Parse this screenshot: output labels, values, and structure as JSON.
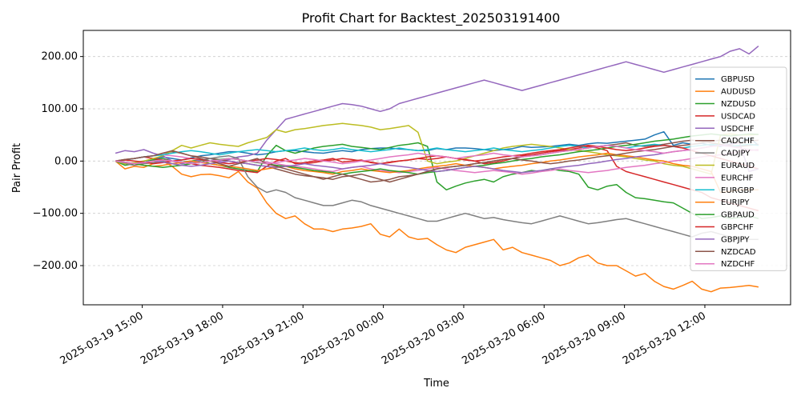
{
  "chart_data": {
    "type": "line",
    "title": "Profit Chart for Backtest_202503191400",
    "xlabel": "Time",
    "ylabel": "Pair Profit",
    "x_start": "2025-03-19 14:00",
    "x_end": "2025-03-20 14:00",
    "xlim": [
      "2025-03-19 12:48",
      "2025-03-20 15:12"
    ],
    "ylim": [
      -275,
      250
    ],
    "x_ticks": [
      "2025-03-19 15:00",
      "2025-03-19 18:00",
      "2025-03-19 21:00",
      "2025-03-20 00:00",
      "2025-03-20 03:00",
      "2025-03-20 06:00",
      "2025-03-20 09:00",
      "2025-03-20 12:00"
    ],
    "x_tick_labels": [
      "2025-03-19 15:00",
      "2025-03-19 18:00",
      "2025-03-19 21:00",
      "2025-03-20 00:00",
      "2025-03-20 03:00",
      "2025-03-20 06:00",
      "2025-03-20 09:00",
      "2025-03-20 12:00"
    ],
    "y_ticks": [
      -200,
      -100,
      0,
      100,
      200
    ],
    "y_tick_labels": [
      "−200.00",
      "−100.00",
      "0.00",
      "100.00",
      "200.00"
    ],
    "grid": "dashed",
    "legend_position": "right",
    "series": [
      {
        "name": "GBPUSD",
        "color": "#1f77b4",
        "values": [
          0,
          -2,
          -5,
          0,
          3,
          8,
          5,
          2,
          6,
          10,
          12,
          15,
          18,
          18,
          15,
          12,
          14,
          18,
          20,
          20,
          18,
          16,
          15,
          18,
          20,
          18,
          22,
          24,
          25,
          25,
          23,
          22,
          20,
          20,
          24,
          22,
          25,
          25,
          24,
          22,
          20,
          22,
          24,
          28,
          26,
          27,
          28,
          30,
          32,
          30,
          33,
          35,
          34,
          36,
          38,
          40,
          42,
          50,
          56,
          30,
          35,
          32,
          34,
          30,
          28,
          33,
          35,
          45,
          30
        ]
      },
      {
        "name": "AUDUSD",
        "color": "#ff7f0e",
        "values": [
          0,
          -15,
          -10,
          -12,
          -5,
          0,
          -10,
          -25,
          -30,
          -26,
          -25,
          -28,
          -32,
          -20,
          -40,
          -52,
          -80,
          -100,
          -110,
          -105,
          -120,
          -130,
          -130,
          -135,
          -130,
          -128,
          -125,
          -120,
          -140,
          -145,
          -130,
          -145,
          -150,
          -148,
          -160,
          -170,
          -175,
          -165,
          -160,
          -155,
          -150,
          -170,
          -165,
          -175,
          -180,
          -185,
          -190,
          -200,
          -195,
          -185,
          -180,
          -195,
          -200,
          -200,
          -210,
          -220,
          -215,
          -230,
          -240,
          -245,
          -238,
          -230,
          -245,
          -250,
          -243,
          -242,
          -240,
          -238,
          -241
        ]
      },
      {
        "name": "NZDUSD",
        "color": "#2ca02c",
        "values": [
          0,
          -8,
          -5,
          -3,
          2,
          5,
          0,
          -2,
          0,
          2,
          -5,
          -8,
          -12,
          -15,
          -18,
          -20,
          10,
          30,
          20,
          15,
          20,
          25,
          28,
          30,
          32,
          28,
          26,
          24,
          22,
          26,
          30,
          32,
          35,
          28,
          -40,
          -55,
          -48,
          -42,
          -38,
          -35,
          -40,
          -30,
          -25,
          -22,
          -18,
          -20,
          -15,
          -18,
          -20,
          -25,
          -50,
          -55,
          -48,
          -45,
          -60,
          -70,
          -72,
          -75,
          -78,
          -80,
          -90,
          -100,
          -110,
          -108,
          -105,
          -110,
          -108,
          -105,
          -110
        ]
      },
      {
        "name": "USDCAD",
        "color": "#d62728",
        "values": [
          0,
          2,
          5,
          8,
          5,
          2,
          0,
          -3,
          -5,
          -8,
          -10,
          -12,
          -15,
          -18,
          -20,
          -22,
          -10,
          0,
          5,
          -5,
          -3,
          0,
          2,
          5,
          -2,
          0,
          2,
          -3,
          -5,
          -2,
          0,
          2,
          5,
          3,
          5,
          8,
          5,
          2,
          0,
          -5,
          -3,
          0,
          5,
          10,
          12,
          15,
          18,
          20,
          22,
          25,
          28,
          25,
          20,
          -10,
          -20,
          -25,
          -30,
          -35,
          -40,
          -45,
          -50,
          -55,
          -60,
          -70,
          -75,
          -80,
          -85,
          -90,
          -95
        ]
      },
      {
        "name": "USDCHF",
        "color": "#9467bd",
        "values": [
          15,
          20,
          18,
          22,
          15,
          10,
          0,
          -5,
          -2,
          2,
          5,
          0,
          3,
          8,
          10,
          15,
          40,
          60,
          80,
          85,
          90,
          95,
          100,
          105,
          110,
          108,
          105,
          100,
          95,
          100,
          110,
          115,
          120,
          125,
          130,
          135,
          140,
          145,
          150,
          155,
          150,
          145,
          140,
          135,
          140,
          145,
          150,
          155,
          160,
          165,
          170,
          175,
          180,
          185,
          190,
          185,
          180,
          175,
          170,
          175,
          180,
          185,
          190,
          195,
          200,
          210,
          215,
          205,
          220
        ]
      },
      {
        "name": "CADCHF",
        "color": "#8c564b",
        "values": [
          0,
          3,
          5,
          8,
          10,
          15,
          18,
          15,
          10,
          8,
          5,
          3,
          0,
          -3,
          -5,
          -8,
          -10,
          -15,
          -20,
          -25,
          -28,
          -30,
          -32,
          -35,
          -30,
          -28,
          -25,
          -30,
          -35,
          -40,
          -35,
          -30,
          -25,
          -20,
          -15,
          -12,
          -10,
          -8,
          -5,
          -3,
          0,
          3,
          5,
          8,
          10,
          12,
          15,
          18,
          20,
          22,
          25,
          28,
          30,
          32,
          35,
          30,
          28,
          30,
          32,
          35,
          38,
          40,
          38,
          35,
          32,
          30,
          28,
          30,
          32
        ]
      },
      {
        "name": "CADJPY",
        "color": "#7f7f7f",
        "values": [
          0,
          -5,
          -8,
          -5,
          -3,
          0,
          -5,
          -8,
          -5,
          0,
          5,
          8,
          10,
          5,
          -30,
          -50,
          -60,
          -55,
          -60,
          -70,
          -75,
          -80,
          -85,
          -85,
          -80,
          -75,
          -78,
          -85,
          -90,
          -95,
          -100,
          -105,
          -110,
          -115,
          -115,
          -110,
          -105,
          -100,
          -105,
          -110,
          -108,
          -112,
          -115,
          -118,
          -120,
          -115,
          -110,
          -105,
          -110,
          -115,
          -120,
          -118,
          -115,
          -112,
          -110,
          -115,
          -120,
          -125,
          -130,
          -135,
          -140,
          -145,
          -138,
          -135,
          -140,
          -145,
          -148,
          -150,
          -150
        ]
      },
      {
        "name": "EURAUD",
        "color": "#bcbd22",
        "values": [
          0,
          -5,
          -3,
          0,
          5,
          10,
          20,
          30,
          25,
          30,
          35,
          32,
          30,
          28,
          35,
          40,
          45,
          60,
          55,
          60,
          62,
          65,
          68,
          70,
          72,
          70,
          68,
          65,
          60,
          62,
          65,
          68,
          55,
          0,
          -5,
          -2,
          0,
          5,
          10,
          15,
          20,
          25,
          28,
          30,
          32,
          30,
          28,
          25,
          22,
          20,
          18,
          15,
          12,
          10,
          8,
          5,
          2,
          0,
          -5,
          -8,
          -10,
          -15,
          -20,
          -25,
          50,
          52,
          50,
          50,
          51
        ]
      },
      {
        "name": "EURCHF",
        "color": "#e377c2",
        "values": [
          0,
          2,
          5,
          8,
          10,
          12,
          10,
          8,
          5,
          3,
          0,
          -2,
          -5,
          -3,
          0,
          2,
          -2,
          -5,
          -8,
          -10,
          -12,
          -15,
          -18,
          -20,
          -15,
          -12,
          -10,
          -15,
          -18,
          -20,
          -22,
          -20,
          -18,
          -15,
          -12,
          -15,
          -18,
          -20,
          -22,
          -20,
          -18,
          -20,
          -22,
          -25,
          -23,
          -20,
          -18,
          -15,
          -18,
          -20,
          -22,
          -20,
          -18,
          -15,
          -12,
          -10,
          -8,
          -5,
          -3,
          0,
          2,
          5,
          8,
          10,
          12,
          15,
          18,
          20,
          22
        ]
      },
      {
        "name": "EURGBP",
        "color": "#17becf",
        "values": [
          0,
          2,
          5,
          8,
          10,
          12,
          15,
          18,
          20,
          18,
          15,
          12,
          15,
          18,
          20,
          22,
          20,
          18,
          20,
          22,
          25,
          22,
          20,
          22,
          25,
          22,
          20,
          18,
          20,
          22,
          25,
          22,
          20,
          22,
          25,
          22,
          20,
          18,
          20,
          22,
          25,
          22,
          20,
          18,
          20,
          22,
          25,
          28,
          30,
          28,
          25,
          28,
          30,
          28,
          25,
          28,
          30,
          32,
          30,
          28,
          25,
          28,
          30,
          32,
          30,
          28,
          30,
          32,
          30
        ]
      },
      {
        "name": "EURJPY",
        "color": "#ff7f0e",
        "values": [
          0,
          -2,
          -5,
          -8,
          -10,
          -8,
          -5,
          -3,
          0,
          -3,
          -5,
          -8,
          -10,
          -12,
          -15,
          -18,
          -15,
          -12,
          -10,
          -15,
          -18,
          -20,
          -22,
          -25,
          -20,
          -18,
          -15,
          -18,
          -20,
          -22,
          -20,
          -18,
          -15,
          -12,
          -10,
          -8,
          -5,
          -8,
          -10,
          -12,
          -15,
          -12,
          -10,
          -8,
          -5,
          -3,
          0,
          2,
          5,
          8,
          10,
          12,
          15,
          12,
          10,
          8,
          5,
          2,
          0,
          -5,
          -8,
          -10,
          -15,
          -20,
          -60,
          -58,
          -55,
          -55,
          -55
        ]
      },
      {
        "name": "GBPAUD",
        "color": "#2ca02c",
        "values": [
          0,
          -3,
          -5,
          -8,
          -10,
          -12,
          -10,
          -8,
          -5,
          -3,
          0,
          3,
          5,
          3,
          0,
          -3,
          -5,
          -8,
          -10,
          -12,
          -15,
          -18,
          -20,
          -22,
          -25,
          -22,
          -20,
          -18,
          -15,
          -18,
          -20,
          -22,
          -25,
          -22,
          -20,
          -18,
          -15,
          -12,
          -10,
          -8,
          -5,
          -3,
          0,
          3,
          5,
          8,
          10,
          12,
          15,
          18,
          20,
          22,
          25,
          28,
          30,
          32,
          35,
          38,
          40,
          42,
          45,
          48,
          50,
          52,
          50,
          48,
          50,
          52,
          51
        ]
      },
      {
        "name": "GBPCHF",
        "color": "#d62728",
        "values": [
          0,
          2,
          0,
          -2,
          -5,
          -3,
          0,
          2,
          5,
          3,
          0,
          -3,
          -5,
          -3,
          0,
          2,
          5,
          3,
          0,
          -3,
          -5,
          -3,
          0,
          2,
          5,
          3,
          0,
          -2,
          -5,
          -3,
          0,
          2,
          5,
          8,
          10,
          8,
          5,
          3,
          0,
          2,
          5,
          8,
          10,
          12,
          15,
          18,
          20,
          22,
          25,
          28,
          30,
          28,
          25,
          22,
          20,
          22,
          25,
          28,
          30,
          28,
          25,
          20,
          15,
          10,
          5,
          0,
          -5,
          -10,
          -15
        ]
      },
      {
        "name": "GBPJPY",
        "color": "#9467bd",
        "values": [
          0,
          -3,
          -5,
          -3,
          0,
          -2,
          -5,
          -8,
          -10,
          -8,
          -5,
          -3,
          0,
          -3,
          -5,
          -8,
          -10,
          -12,
          -10,
          -8,
          -5,
          -8,
          -10,
          -12,
          -15,
          -12,
          -10,
          -8,
          -5,
          -8,
          -10,
          -12,
          -15,
          -18,
          -20,
          -18,
          -15,
          -12,
          -10,
          -12,
          -15,
          -18,
          -20,
          -22,
          -20,
          -18,
          -15,
          -12,
          -10,
          -8,
          -5,
          -3,
          0,
          3,
          5,
          8,
          10,
          12,
          15,
          18,
          20,
          22,
          25,
          28,
          30,
          32,
          35,
          -20,
          -15
        ]
      },
      {
        "name": "NZDCAD",
        "color": "#8c564b",
        "values": [
          0,
          3,
          5,
          8,
          10,
          15,
          20,
          15,
          10,
          5,
          0,
          -5,
          -10,
          -5,
          0,
          5,
          -5,
          -10,
          -15,
          -20,
          -25,
          -30,
          -35,
          -30,
          -25,
          -30,
          -35,
          -40,
          -38,
          -35,
          -30,
          -28,
          -25,
          -20,
          -15,
          -12,
          -10,
          -8,
          -5,
          -3,
          0,
          3,
          5,
          2,
          0,
          -3,
          -5,
          -3,
          0,
          2,
          5,
          8,
          10,
          12,
          15,
          18,
          20,
          22,
          25,
          28,
          30,
          32,
          35,
          38,
          40,
          38,
          35,
          38,
          40
        ]
      },
      {
        "name": "NZDCHF",
        "color": "#e377c2",
        "values": [
          0,
          -2,
          -5,
          -3,
          0,
          2,
          0,
          -2,
          -5,
          -3,
          0,
          2,
          5,
          3,
          0,
          -2,
          -5,
          -3,
          0,
          2,
          5,
          3,
          0,
          -2,
          -5,
          -3,
          0,
          2,
          5,
          8,
          10,
          12,
          15,
          12,
          10,
          8,
          5,
          8,
          10,
          12,
          15,
          12,
          10,
          8,
          10,
          12,
          15,
          18,
          20,
          22,
          25,
          28,
          30,
          28,
          25,
          22,
          20,
          18,
          15,
          18,
          20,
          22,
          25,
          28,
          30,
          28,
          25,
          22,
          20
        ]
      }
    ]
  }
}
